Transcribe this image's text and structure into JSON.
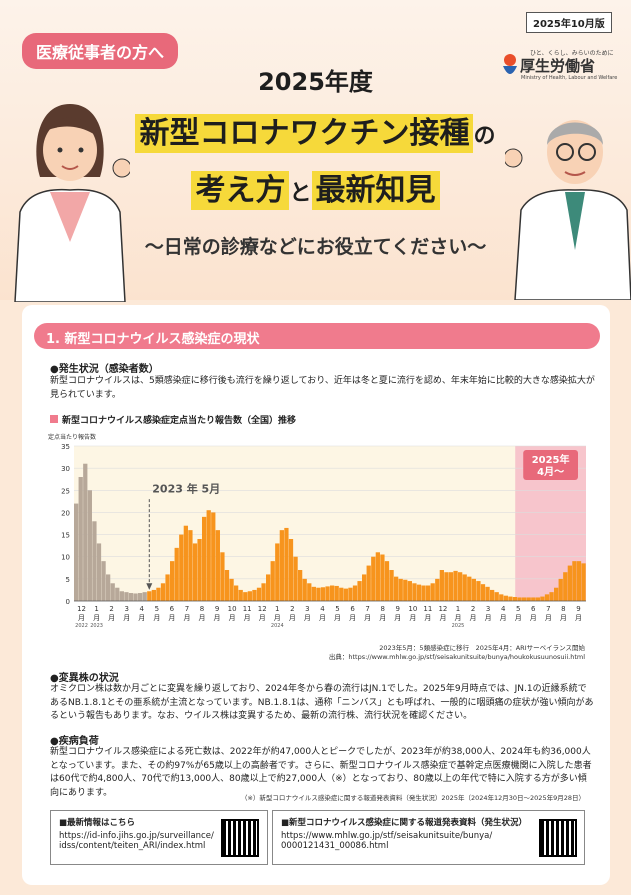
{
  "header": {
    "audience": "医療従事者の方へ",
    "date": "2025年10月版",
    "ministry_tag": "ひと、くらし、みらいのために",
    "ministry": "厚生労働省",
    "ministry_en": "Ministry of Health, Labour and Welfare",
    "year": "2025年度",
    "title_a": "新型コロナワクチン接種",
    "title_b": "の",
    "title_c": "考え方",
    "title_d": "と",
    "title_e": "最新知見",
    "subtitle": "〜日常の診療などにお役立てください〜"
  },
  "section1": {
    "title": "1. 新型コロナウイルス感染症の現状",
    "status_heading": "●発生状況（感染者数）",
    "status_text": "新型コロナウイルスは、5類感染症に移行後も流行を繰り返しており、近年は冬と夏に流行を認め、年末年始に比較的大きな感染拡大が見られています。",
    "chart_title": "新型コロナウイルス感染症定点当たり報告数（全国）推移",
    "note1": "2023年5月：5類感染症に移行　2025年4月：ARIサーベイランス開始",
    "note2": "出典：https://www.mhlw.go.jp/stf/seisakunitsuite/bunya/houkokusuunosuii.html",
    "variant_heading": "●変異株の状況",
    "variant_text": "オミクロン株は数か月ごとに変異を繰り返しており、2024年冬から春の流行はJN.1でした。2025年9月時点では、JN.1の近縁系統であるNB.1.8.1とその亜系統が主流となっています。NB.1.8.1は、通称「ニンバス」とも呼ばれ、一般的に咽頭痛の症状が強い傾向があるという報告もあります。なお、ウイルス株は変異するため、最新の流行株、流行状況を確認ください。",
    "disease_heading": "●疾病負荷",
    "disease_text": "新型コロナウイルス感染症による死亡数は、2022年が約47,000人とピークでしたが、2023年が約38,000人、2024年も約36,000人となっています。また、その約97%が65歳以上の高齢者です。さらに、新型コロナウイルス感染症で基幹定点医療機関に入院した患者は60代で約4,800人、70代で約13,000人、80歳以上で約27,000人（※）となっており、80歳以上の年代で特に入院する方が多い傾向にあります。",
    "footnote": "（※）新型コロナウイルス感染症に関する報道発表資料（発生状況）2025年（2024年12月30日〜2025年9月28日）"
  },
  "links": {
    "box1_title": "■最新情報はこちら",
    "box1_url1": "https://id-info.jihs.go.jp/surveillance/",
    "box1_url2": "idss/content/teiten_ARI/index.html",
    "box2_title": "■新型コロナウイルス感染症に関する報道発表資料（発生状況）",
    "box2_url1": "https://www.mhlw.go.jp/stf/seisakunitsuite/bunya/",
    "box2_url2": "0000121431_00086.html"
  },
  "chart_data": {
    "type": "bar",
    "ylabel": "定点当たり報告数",
    "ylim": [
      0,
      35
    ],
    "yticks": [
      0,
      5,
      10,
      15,
      20,
      25,
      30,
      35
    ],
    "xticks": [
      "12",
      "1",
      "2",
      "3",
      "4",
      "5",
      "6",
      "7",
      "8",
      "9",
      "10",
      "11",
      "12",
      "1",
      "2",
      "3",
      "4",
      "5",
      "6",
      "7",
      "8",
      "9",
      "10",
      "11",
      "12",
      "1",
      "2",
      "3",
      "4",
      "5",
      "6",
      "7",
      "8",
      "9"
    ],
    "xunit": "月",
    "year_labels": [
      "2022",
      "2023",
      "2024",
      "2025"
    ],
    "annotation_2023": "2023 年 5月",
    "annotation_2025": "2025年\n4月〜",
    "colors": {
      "before": "#b7a899",
      "after": "#f7941d",
      "shade": "#f7c5cc"
    },
    "values": [
      22,
      28,
      31,
      25,
      18,
      13,
      9,
      6,
      4,
      3,
      2.2,
      2,
      1.8,
      1.7,
      1.8,
      2,
      2.2,
      2.5,
      3,
      4,
      6,
      9,
      12,
      15,
      17,
      16,
      13,
      14,
      19,
      20.5,
      20,
      16,
      11,
      7,
      5,
      3.5,
      2.5,
      2,
      2.2,
      2.5,
      3,
      4,
      6,
      9,
      13,
      16,
      16.5,
      14,
      10,
      7,
      5,
      4,
      3.2,
      3,
      3.1,
      3.3,
      3.5,
      3.4,
      3,
      2.8,
      3,
      3.5,
      4.5,
      6,
      8,
      10,
      11,
      10.5,
      9,
      7,
      5.5,
      5,
      4.8,
      4.5,
      4,
      3.7,
      3.5,
      3.5,
      4,
      5,
      7,
      6.5,
      6.5,
      6.8,
      6.5,
      6,
      5.5,
      5,
      4.5,
      3.8,
      3.2,
      2.5,
      2,
      1.5,
      1.2,
      1,
      0.9,
      0.8,
      0.8,
      0.8,
      0.8,
      0.8,
      1,
      1.5,
      2,
      3,
      5,
      6.5,
      8,
      9,
      9,
      8.5
    ]
  }
}
